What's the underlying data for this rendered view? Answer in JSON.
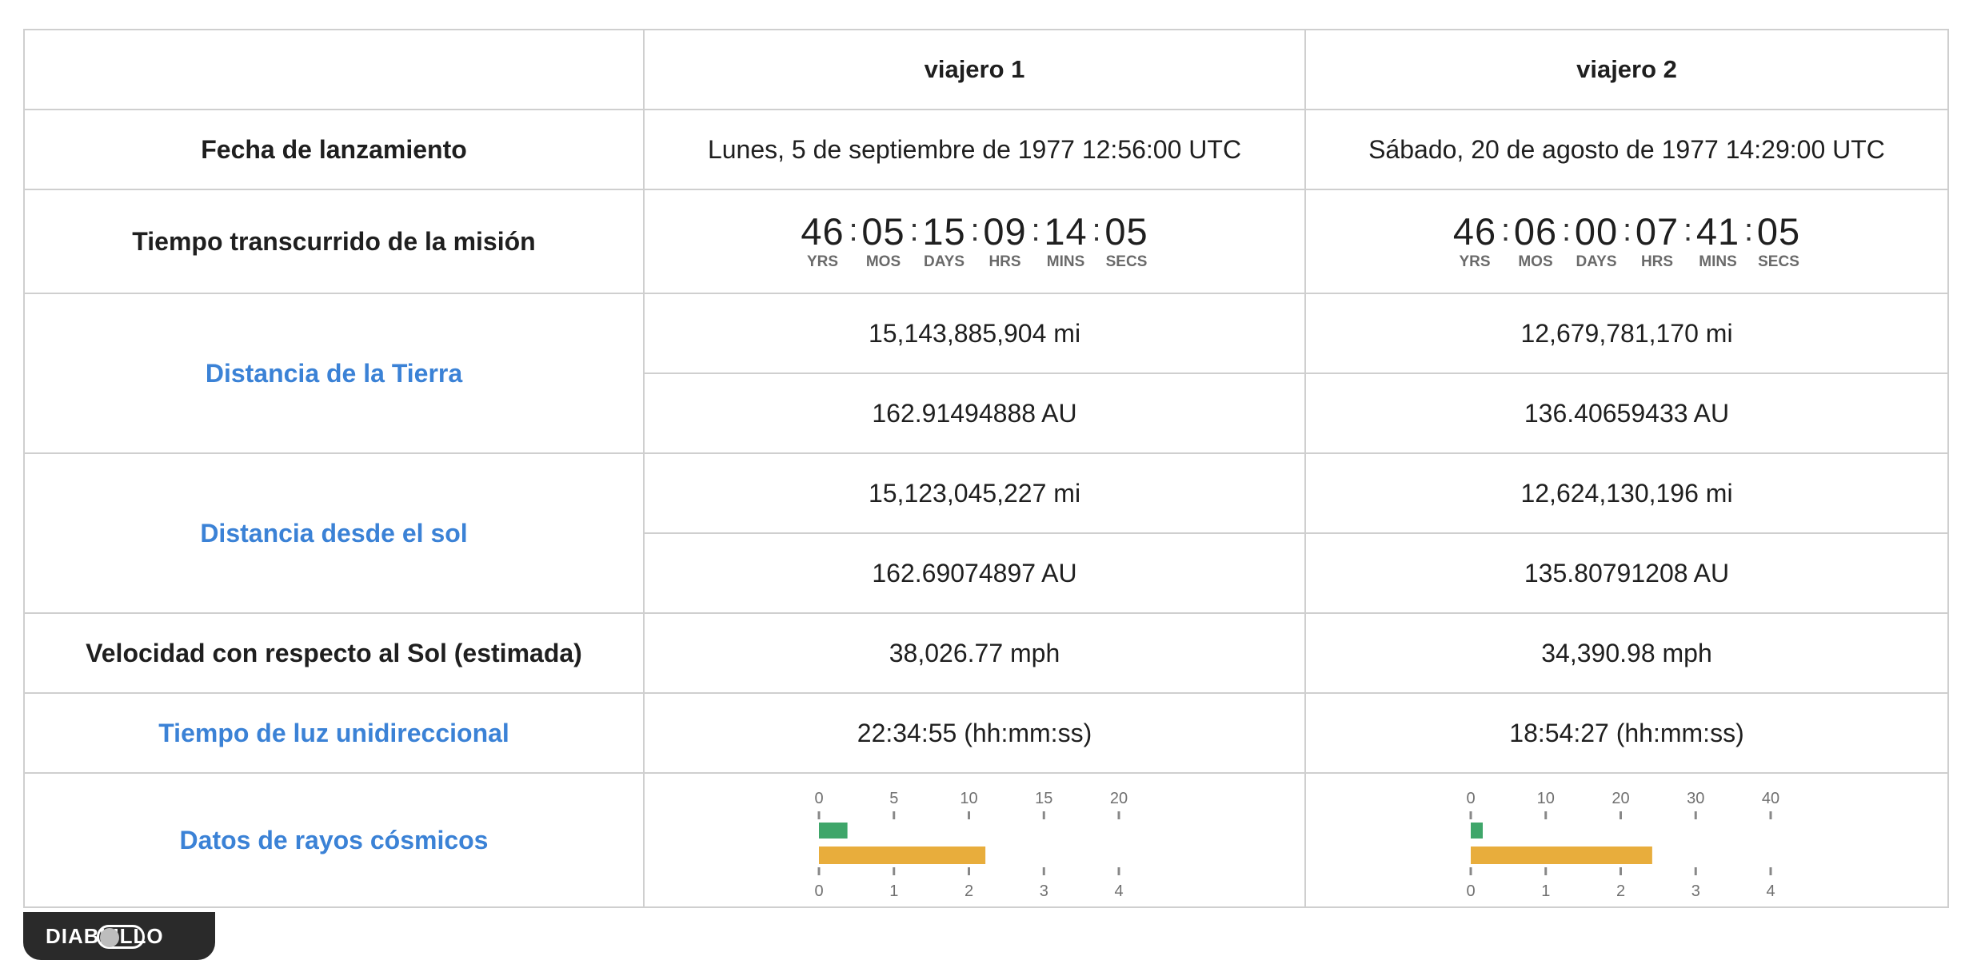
{
  "header": {
    "blank": "",
    "voyager1": "viajero 1",
    "voyager2": "viajero 2"
  },
  "launch": {
    "label": "Fecha de lanzamiento",
    "v1": "Lunes, 5 de septiembre de 1977 12:56:00 UTC",
    "v2": "Sábado, 20 de agosto de 1977 14:29:00 UTC"
  },
  "mission_time": {
    "label": "Tiempo transcurrido de la misión",
    "unit_labels": [
      "YRS",
      "MOS",
      "DAYS",
      "HRS",
      "MINS",
      "SECS"
    ],
    "v1": [
      "46",
      "05",
      "15",
      "09",
      "14",
      "05"
    ],
    "v2": [
      "46",
      "06",
      "00",
      "07",
      "41",
      "05"
    ]
  },
  "earth_distance": {
    "label": "Distancia de la Tierra",
    "v1_mi": "15,143,885,904 mi",
    "v1_au": "162.91494888 AU",
    "v2_mi": "12,679,781,170 mi",
    "v2_au": "136.40659433 AU"
  },
  "sun_distance": {
    "label": "Distancia desde el sol",
    "v1_mi": "15,123,045,227 mi",
    "v1_au": "162.69074897 AU",
    "v2_mi": "12,624,130,196 mi",
    "v2_au": "135.80791208 AU"
  },
  "velocity": {
    "label": "Velocidad con respecto al Sol (estimada)",
    "v1": "38,026.77 mph",
    "v2": "34,390.98 mph"
  },
  "light_time": {
    "label": "Tiempo de luz unidireccional",
    "v1": "22:34:55 (hh:mm:ss)",
    "v2": "18:54:27 (hh:mm:ss)"
  },
  "cosmic": {
    "label": "Datos de rayos cósmicos"
  },
  "chart_data": [
    {
      "type": "bar",
      "title": "",
      "series": [
        {
          "color": "#3fa66a",
          "values": [
            1.9
          ],
          "axis": "top",
          "range": [
            0,
            20
          ],
          "ticks": [
            "0",
            "5",
            "10",
            "15",
            "20"
          ]
        },
        {
          "color": "#e8ad3c",
          "values": [
            2.22
          ],
          "axis": "bottom",
          "range": [
            0,
            4
          ],
          "ticks": [
            "0",
            "1",
            "2",
            "3",
            "4"
          ]
        }
      ]
    },
    {
      "type": "bar",
      "title": "",
      "series": [
        {
          "color": "#3fa66a",
          "values": [
            1.6
          ],
          "axis": "top",
          "range": [
            0,
            40
          ],
          "ticks": [
            "0",
            "10",
            "20",
            "30",
            "40"
          ]
        },
        {
          "color": "#e8ad3c",
          "values": [
            2.42
          ],
          "axis": "bottom",
          "range": [
            0,
            4
          ],
          "ticks": [
            "0",
            "1",
            "2",
            "3",
            "4"
          ]
        }
      ]
    }
  ],
  "toggle": {
    "label": "DIABLILLO",
    "on": false,
    "knob_color": "#bdbdbd"
  }
}
